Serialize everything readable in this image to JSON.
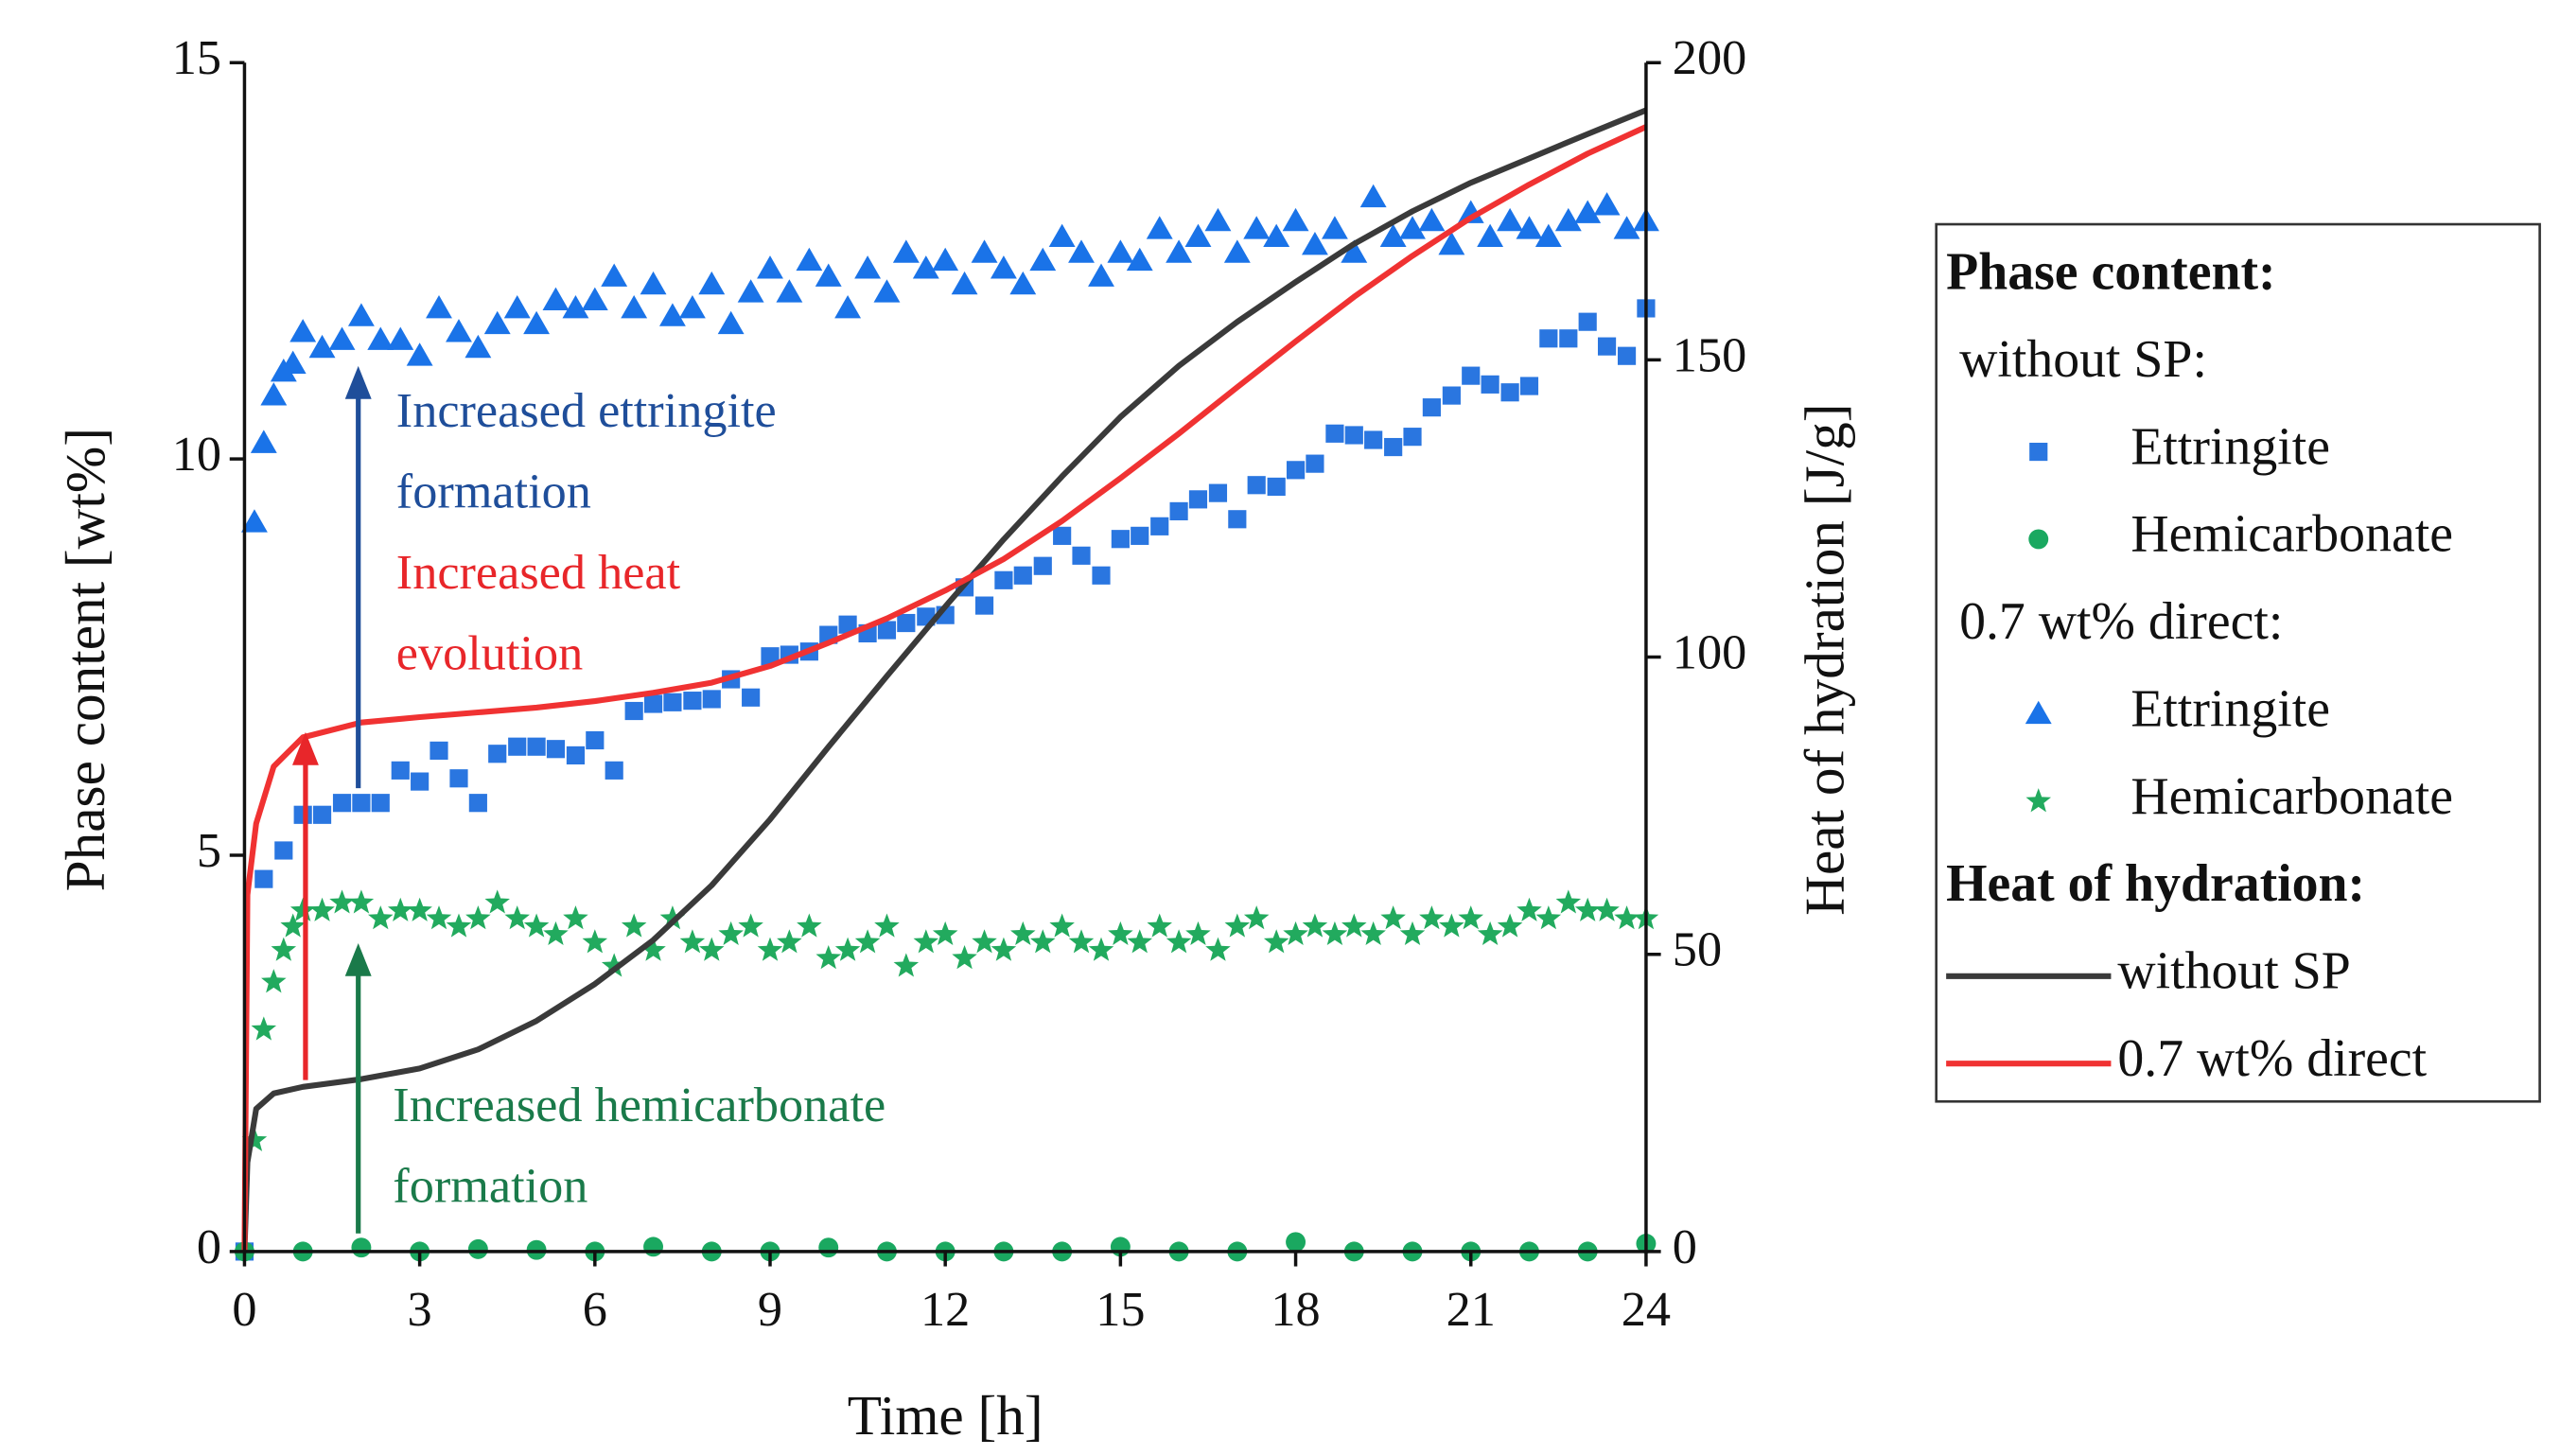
{
  "chart_data": {
    "type": "scatter",
    "xlabel": "Time [h]",
    "ylabel": "Phase content [wt%]",
    "y2label": "Heat of hydration [J/g]",
    "xlim": [
      0,
      24
    ],
    "xticks": [
      0,
      3,
      6,
      9,
      12,
      15,
      18,
      21,
      24
    ],
    "ylim": [
      0,
      15
    ],
    "yticks": [
      0,
      5,
      10,
      15
    ],
    "y2lim": [
      0,
      200
    ],
    "y2ticks": [
      0,
      50,
      100,
      150,
      200
    ],
    "legend": {
      "position": "right",
      "headings": [
        "Phase content:",
        "without SP:",
        "0.7 wt% direct:",
        "Heat of hydration:"
      ]
    },
    "annotations": [
      {
        "lines": [
          "Increased ettringite",
          "formation"
        ],
        "color": "#1f4e9a"
      },
      {
        "lines": [
          "Increased heat",
          "evolution"
        ],
        "color": "#e8262a"
      },
      {
        "lines": [
          "Increased hemicarbonate",
          "formation"
        ],
        "color": "#1a7a4a"
      }
    ],
    "series": [
      {
        "name": "Ettringite",
        "color": "#2a76e0",
        "marker": "square",
        "x": [
          0,
          0.33,
          0.67,
          1,
          1.33,
          1.67,
          2,
          2.33,
          2.67,
          3,
          3.33,
          3.67,
          4,
          4.33,
          4.67,
          5,
          5.33,
          5.67,
          6,
          6.33,
          6.67,
          7,
          7.33,
          7.67,
          8,
          8.33,
          8.67,
          9,
          9.33,
          9.67,
          10,
          10.33,
          10.67,
          11,
          11.33,
          11.67,
          12,
          12.33,
          12.67,
          13,
          13.33,
          13.67,
          14,
          14.33,
          14.67,
          15,
          15.33,
          15.67,
          16,
          16.33,
          16.67,
          17,
          17.33,
          17.67,
          18,
          18.33,
          18.67,
          19,
          19.33,
          19.67,
          20,
          20.33,
          20.67,
          21,
          21.33,
          21.67,
          22,
          22.33,
          22.67,
          23,
          23.33,
          23.67,
          24
        ],
        "values": [
          0,
          4.7,
          5.06,
          5.51,
          5.51,
          5.66,
          5.66,
          5.66,
          6.07,
          5.93,
          6.32,
          5.97,
          5.66,
          6.28,
          6.37,
          6.37,
          6.34,
          6.26,
          6.45,
          6.07,
          6.82,
          6.91,
          6.93,
          6.95,
          6.97,
          7.22,
          6.99,
          7.51,
          7.53,
          7.57,
          7.78,
          7.91,
          7.8,
          7.84,
          7.93,
          8.01,
          8.03,
          8.38,
          8.15,
          8.47,
          8.53,
          8.65,
          9.03,
          8.78,
          8.53,
          8.99,
          9.03,
          9.15,
          9.34,
          9.49,
          9.57,
          9.24,
          9.67,
          9.65,
          9.86,
          9.94,
          10.32,
          10.3,
          10.24,
          10.15,
          10.28,
          10.65,
          10.8,
          11.05,
          10.94,
          10.84,
          10.92,
          11.52,
          11.52,
          11.73,
          11.42,
          11.3,
          11.9
        ]
      },
      {
        "name": "Hemicarbonate",
        "color": "#1aa860",
        "marker": "circle",
        "x": [
          0,
          1,
          2,
          3,
          4,
          5,
          6,
          7,
          8,
          9,
          10,
          11,
          12,
          13,
          14,
          15,
          16,
          17,
          18,
          19,
          20,
          21,
          22,
          23,
          24
        ],
        "values": [
          0,
          0,
          0.05,
          0,
          0.03,
          0.02,
          0,
          0.06,
          0,
          0,
          0.05,
          0,
          0,
          0,
          0,
          0.06,
          0,
          0,
          0.12,
          0,
          0,
          0,
          0,
          0,
          0.1
        ]
      },
      {
        "name": "Ettringite",
        "color": "#1a73e8",
        "marker": "triangle",
        "x": [
          0.17,
          0.33,
          0.5,
          0.67,
          0.83,
          1,
          1.33,
          1.67,
          2,
          2.33,
          2.67,
          3,
          3.33,
          3.67,
          4,
          4.33,
          4.67,
          5,
          5.33,
          5.67,
          6,
          6.33,
          6.67,
          7,
          7.33,
          7.67,
          8,
          8.33,
          8.67,
          9,
          9.33,
          9.67,
          10,
          10.33,
          10.67,
          11,
          11.33,
          11.67,
          12,
          12.33,
          12.67,
          13,
          13.33,
          13.67,
          14,
          14.33,
          14.67,
          15,
          15.33,
          15.67,
          16,
          16.33,
          16.67,
          17,
          17.33,
          17.67,
          18,
          18.33,
          18.67,
          19,
          19.33,
          19.67,
          20,
          20.33,
          20.67,
          21,
          21.33,
          21.67,
          22,
          22.33,
          22.67,
          23,
          23.33,
          23.67,
          24
        ],
        "values": [
          9.2,
          10.2,
          10.8,
          11.1,
          11.2,
          11.6,
          11.4,
          11.5,
          11.8,
          11.5,
          11.5,
          11.3,
          11.9,
          11.6,
          11.4,
          11.7,
          11.9,
          11.7,
          12.0,
          11.9,
          12.0,
          12.3,
          11.9,
          12.2,
          11.8,
          11.9,
          12.2,
          11.7,
          12.1,
          12.4,
          12.1,
          12.5,
          12.3,
          11.9,
          12.4,
          12.1,
          12.6,
          12.4,
          12.5,
          12.2,
          12.6,
          12.4,
          12.2,
          12.5,
          12.8,
          12.6,
          12.3,
          12.6,
          12.5,
          12.9,
          12.6,
          12.8,
          13.0,
          12.6,
          12.9,
          12.8,
          13.0,
          12.7,
          12.9,
          12.6,
          13.3,
          12.8,
          12.9,
          13.0,
          12.7,
          13.1,
          12.8,
          13.0,
          12.9,
          12.8,
          13.0,
          13.1,
          13.2,
          12.9,
          13.0
        ]
      },
      {
        "name": "Hemicarbonate",
        "color": "#22aa5e",
        "marker": "star",
        "x": [
          0.17,
          0.33,
          0.5,
          0.67,
          0.83,
          1,
          1.33,
          1.67,
          2,
          2.33,
          2.67,
          3,
          3.33,
          3.67,
          4,
          4.33,
          4.67,
          5,
          5.33,
          5.67,
          6,
          6.33,
          6.67,
          7,
          7.33,
          7.67,
          8,
          8.33,
          8.67,
          9,
          9.33,
          9.67,
          10,
          10.33,
          10.67,
          11,
          11.33,
          11.67,
          12,
          12.33,
          12.67,
          13,
          13.33,
          13.67,
          14,
          14.33,
          14.67,
          15,
          15.33,
          15.67,
          16,
          16.33,
          16.67,
          17,
          17.33,
          17.67,
          18,
          18.33,
          18.67,
          19,
          19.33,
          19.67,
          20,
          20.33,
          20.67,
          21,
          21.33,
          21.67,
          22,
          22.33,
          22.67,
          23,
          23.33,
          23.67,
          24
        ],
        "values": [
          1.4,
          2.8,
          3.4,
          3.8,
          4.1,
          4.3,
          4.3,
          4.4,
          4.4,
          4.2,
          4.3,
          4.3,
          4.2,
          4.1,
          4.2,
          4.4,
          4.2,
          4.1,
          4.0,
          4.2,
          3.9,
          3.6,
          4.1,
          3.8,
          4.2,
          3.9,
          3.8,
          4.0,
          4.1,
          3.8,
          3.9,
          4.1,
          3.7,
          3.8,
          3.9,
          4.1,
          3.6,
          3.9,
          4.0,
          3.7,
          3.9,
          3.8,
          4.0,
          3.9,
          4.1,
          3.9,
          3.8,
          4.0,
          3.9,
          4.1,
          3.9,
          4.0,
          3.8,
          4.1,
          4.2,
          3.9,
          4.0,
          4.1,
          4.0,
          4.1,
          4.0,
          4.2,
          4.0,
          4.2,
          4.1,
          4.2,
          4.0,
          4.1,
          4.3,
          4.2,
          4.4,
          4.3,
          4.3,
          4.2,
          4.2
        ]
      },
      {
        "name": "without SP",
        "color": "#3a3a3a",
        "marker": "line",
        "axis": "y2",
        "x": [
          0,
          0.05,
          0.2,
          0.5,
          1,
          2,
          3,
          4,
          5,
          6,
          7,
          8,
          9,
          10,
          11,
          12,
          13,
          14,
          15,
          16,
          17,
          18,
          19,
          20,
          21,
          22,
          23,
          24
        ],
        "values": [
          0,
          15,
          24,
          26.6,
          27.7,
          29,
          30.8,
          34,
          38.8,
          45,
          52.4,
          61.6,
          72.7,
          84.9,
          96.8,
          108.5,
          119.8,
          130.4,
          140.4,
          149,
          156.4,
          163.1,
          169.5,
          175,
          179.8,
          183.9,
          188,
          192
        ]
      },
      {
        "name": "0.7 wt% direct",
        "color": "#f03232",
        "marker": "line",
        "axis": "y2",
        "x": [
          0,
          0.05,
          0.2,
          0.5,
          1,
          2,
          3,
          4,
          5,
          6,
          7,
          8,
          9,
          10,
          11,
          12,
          13,
          14,
          15,
          16,
          17,
          18,
          19,
          20,
          21,
          22,
          23,
          24
        ],
        "values": [
          0,
          60,
          72,
          81.6,
          86.5,
          89,
          89.9,
          90.7,
          91.5,
          92.6,
          94,
          95.7,
          98.5,
          102.4,
          106.5,
          111.2,
          116.5,
          122.9,
          130.1,
          137.6,
          145.4,
          153.1,
          160.6,
          167.5,
          173.9,
          179.5,
          184.7,
          189.2
        ]
      }
    ]
  }
}
